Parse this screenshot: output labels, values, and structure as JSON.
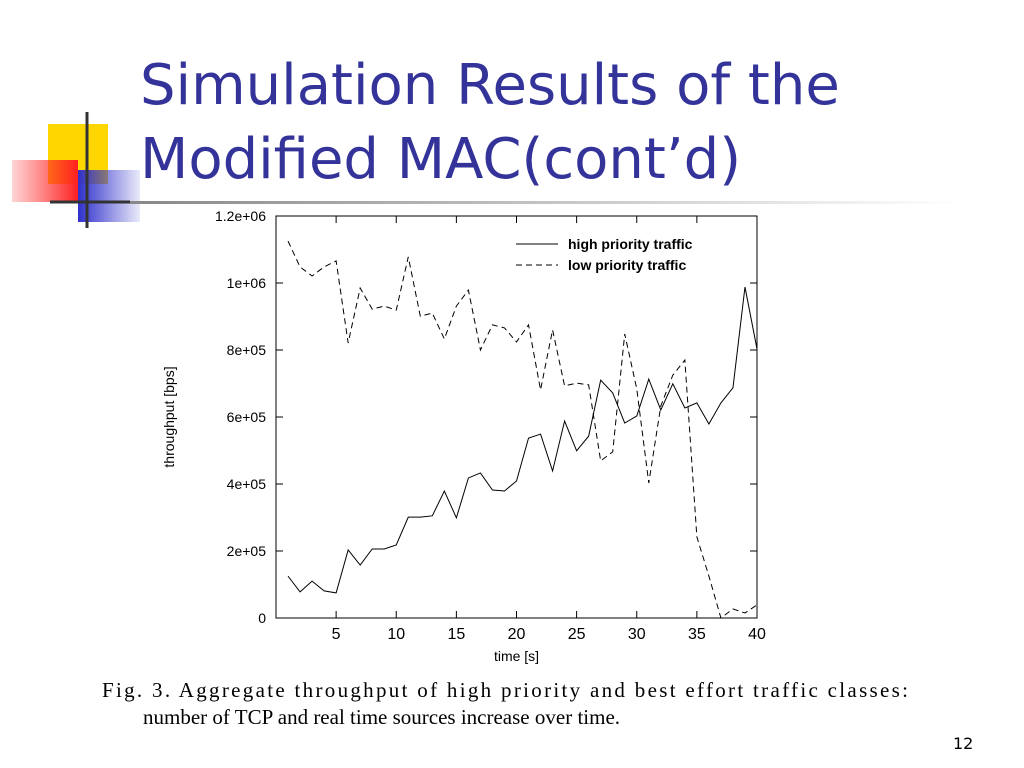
{
  "slide": {
    "title_lines": [
      "Simulation Results of the",
      "Modified MAC(cont’d)"
    ],
    "caption_lines": [
      "Fig. 3.    Aggregate throughput of high priority and best effort traffic classes:",
      "number of TCP and real time sources increase over time."
    ],
    "page_number": "12"
  },
  "chart_data": {
    "type": "line",
    "xlabel": "time [s]",
    "ylabel": "throughput [bps]",
    "x": [
      1,
      2,
      3,
      4,
      5,
      6,
      7,
      8,
      9,
      10,
      11,
      12,
      13,
      14,
      15,
      16,
      17,
      18,
      19,
      20,
      21,
      22,
      23,
      24,
      25,
      26,
      27,
      28,
      29,
      30,
      31,
      32,
      33,
      34,
      35,
      36,
      37,
      38,
      39,
      40
    ],
    "series": [
      {
        "name": "high priority traffic",
        "color": "#000000",
        "dashed": false,
        "values": [
          125000,
          78000,
          110000,
          81000,
          75000,
          203000,
          158000,
          206000,
          206000,
          218000,
          301000,
          301000,
          305000,
          379000,
          299000,
          418000,
          433000,
          382000,
          379000,
          409000,
          537000,
          549000,
          439000,
          588000,
          499000,
          543000,
          710000,
          672000,
          582000,
          603000,
          713000,
          621000,
          699000,
          627000,
          642000,
          579000,
          642000,
          687000,
          988000,
          803000
        ]
      },
      {
        "name": "low priority traffic",
        "color": "#000000",
        "dashed": true,
        "values": [
          1125000,
          1048000,
          1021000,
          1048000,
          1066000,
          821000,
          985000,
          922000,
          931000,
          919000,
          1078000,
          901000,
          910000,
          833000,
          931000,
          979000,
          800000,
          875000,
          866000,
          824000,
          875000,
          681000,
          860000,
          693000,
          701000,
          696000,
          469000,
          496000,
          848000,
          684000,
          403000,
          633000,
          725000,
          770000,
          242000,
          125000,
          0,
          27000,
          15000,
          39000
        ]
      }
    ],
    "xlim": [
      0,
      40
    ],
    "xticks": [
      5,
      10,
      15,
      20,
      25,
      30,
      35,
      40
    ],
    "ylim": [
      0,
      1200000
    ],
    "yticks": [
      0,
      {
        "value": 200000,
        "label": "2e+05"
      },
      {
        "value": 400000,
        "label": "4e+05"
      },
      {
        "value": 600000,
        "label": "6e+05"
      },
      {
        "value": 800000,
        "label": "8e+05"
      },
      {
        "value": 1000000,
        "label": "1e+06"
      },
      {
        "value": 1200000,
        "label": "1.2e+06"
      }
    ],
    "legend": "upper right"
  }
}
